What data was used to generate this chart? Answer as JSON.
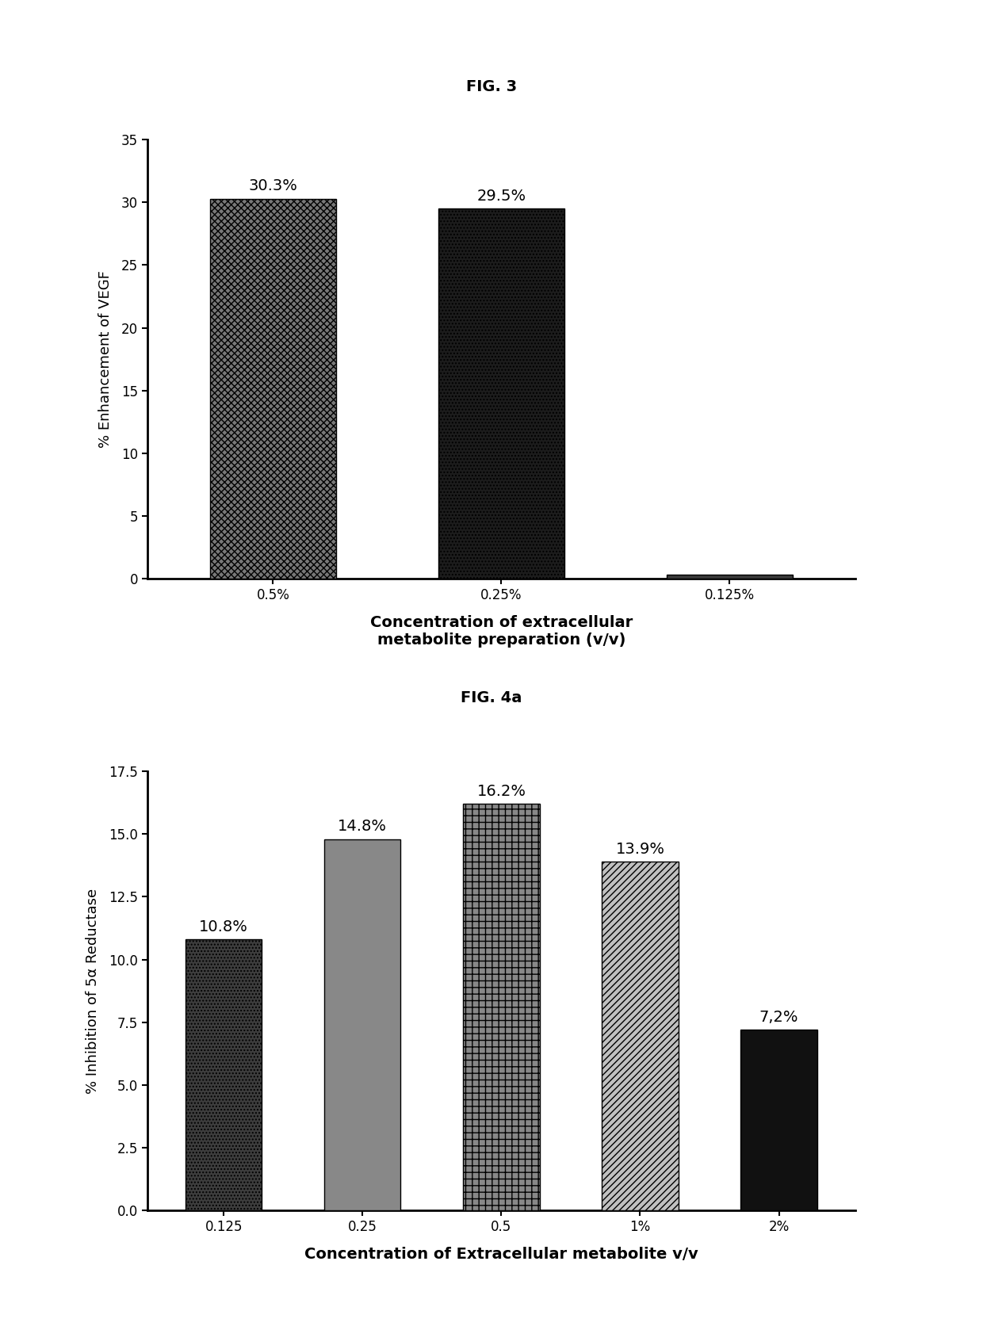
{
  "fig3": {
    "title": "FIG. 3",
    "categories": [
      "0.5%",
      "0.25%",
      "0.125%"
    ],
    "values": [
      30.3,
      29.5,
      0.3
    ],
    "labels": [
      "30.3%",
      "29.5%",
      ""
    ],
    "ylabel": "% Enhancement of VEGF",
    "xlabel": "Concentration of extracellular\nmetabolite preparation (v/v)",
    "ylim": [
      0,
      35
    ],
    "yticks": [
      0,
      5,
      10,
      15,
      20,
      25,
      30,
      35
    ],
    "bar_colors": [
      "#7a7a7a",
      "#252525",
      "#333333"
    ],
    "hatch_patterns": [
      "xxx",
      "...",
      ""
    ],
    "bar_edgecolor": "#000000"
  },
  "fig4a": {
    "title": "FIG. 4a",
    "categories": [
      "0.125",
      "0.25",
      "0.5",
      "1%",
      "2%"
    ],
    "values": [
      10.8,
      14.8,
      16.2,
      13.9,
      7.2
    ],
    "labels": [
      "10.8%",
      "14.8%",
      "16.2%",
      "13.9%",
      "7,2%"
    ],
    "ylabel": "% Inhibition of 5α Reductase",
    "xlabel": "Concentration of Extracellular metabolite v/v",
    "ylim": [
      0,
      17.5
    ],
    "yticks": [
      0.0,
      2.5,
      5.0,
      7.5,
      10.0,
      12.5,
      15.0,
      17.5
    ],
    "bar_colors": [
      "#3d3d3d",
      "#888888",
      "#999999",
      "#cccccc",
      "#111111"
    ],
    "hatch_patterns": [
      "....",
      "",
      "++",
      "////",
      ""
    ],
    "bar_edgecolor": "#000000"
  },
  "background_color": "#ffffff",
  "title_fontsize": 14,
  "label_fontsize": 13,
  "tick_fontsize": 12,
  "annotation_fontsize": 14,
  "xlabel_fontsize": 14
}
